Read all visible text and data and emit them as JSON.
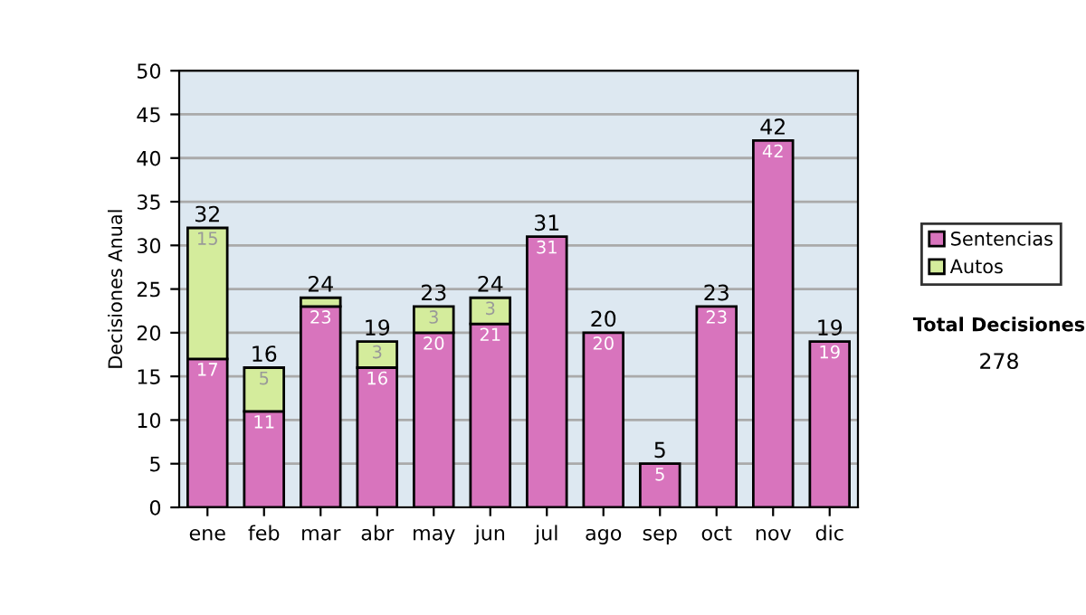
{
  "chart_data": {
    "type": "bar",
    "stacked": true,
    "ylabel": "Decisiones Anual",
    "categories": [
      "ene",
      "feb",
      "mar",
      "abr",
      "may",
      "jun",
      "jul",
      "ago",
      "sep",
      "oct",
      "nov",
      "dic"
    ],
    "series": [
      {
        "name": "Sentencias",
        "color": "#d874bd",
        "values": [
          17,
          11,
          23,
          16,
          20,
          21,
          31,
          20,
          5,
          23,
          42,
          19
        ],
        "value_labels": [
          "17",
          "11",
          "23",
          "16",
          "20",
          "21",
          "31",
          "20",
          "5",
          "23",
          "42",
          "19"
        ]
      },
      {
        "name": "Autos",
        "color": "#d4ec9c",
        "values": [
          15,
          5,
          1,
          3,
          3,
          3,
          null,
          null,
          null,
          null,
          null,
          null
        ],
        "value_labels": [
          "15",
          "5",
          null,
          "3",
          "3",
          "3",
          null,
          null,
          null,
          null,
          null,
          null
        ]
      }
    ],
    "totals": [
      "32",
      "16",
      "24",
      "19",
      "23",
      "24",
      "31",
      "20",
      "5",
      "23",
      "42",
      "19"
    ],
    "ylim": [
      0,
      50
    ],
    "yticks": [
      0,
      5,
      10,
      15,
      20,
      25,
      30,
      35,
      40,
      45,
      50
    ],
    "grid": "y",
    "legend": "right",
    "annotations": [
      "Total Decisiones",
      "278"
    ]
  }
}
